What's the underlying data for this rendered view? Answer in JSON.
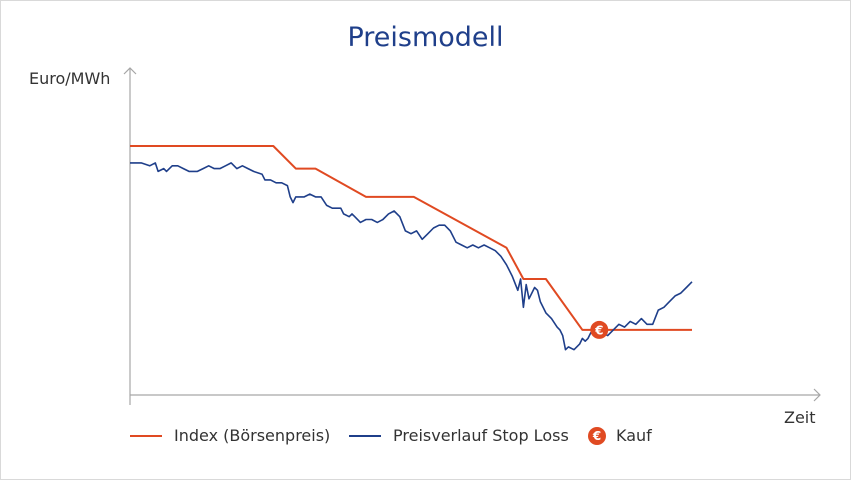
{
  "chart_data": {
    "type": "line",
    "title": "Preismodell",
    "ylabel": "Euro/MWh",
    "xlabel": "Zeit",
    "axis_ticks": false,
    "grid": false,
    "xlim": [
      0,
      100
    ],
    "ylim": [
      0,
      100
    ],
    "legend_position": "bottom",
    "series": [
      {
        "name": "Index (Börsenpreis)",
        "color": "#e04a22",
        "points": [
          [
            0,
            88
          ],
          [
            25.5,
            88
          ],
          [
            29.5,
            80
          ],
          [
            33,
            80
          ],
          [
            42,
            70
          ],
          [
            50.5,
            70
          ],
          [
            67,
            52
          ],
          [
            70,
            41
          ],
          [
            74,
            41
          ],
          [
            80.5,
            23
          ],
          [
            100,
            23
          ]
        ]
      },
      {
        "name": "Preisverlauf Stop Loss",
        "color": "#1f3f8a",
        "points": [
          [
            0,
            82
          ],
          [
            2,
            82
          ],
          [
            3.5,
            81
          ],
          [
            4.5,
            82
          ],
          [
            5,
            79
          ],
          [
            6,
            80
          ],
          [
            6.5,
            79
          ],
          [
            7.5,
            81
          ],
          [
            8.5,
            81
          ],
          [
            9.5,
            80
          ],
          [
            10.5,
            79
          ],
          [
            12,
            79
          ],
          [
            13,
            80
          ],
          [
            14,
            81
          ],
          [
            15,
            80
          ],
          [
            16,
            80
          ],
          [
            17,
            81
          ],
          [
            18,
            82
          ],
          [
            19,
            80
          ],
          [
            20,
            81
          ],
          [
            21,
            80
          ],
          [
            22,
            79
          ],
          [
            23.5,
            78
          ],
          [
            24,
            76
          ],
          [
            25,
            76
          ],
          [
            26,
            75
          ],
          [
            27,
            75
          ],
          [
            28,
            74
          ],
          [
            28.5,
            70
          ],
          [
            29,
            68
          ],
          [
            29.5,
            70
          ],
          [
            31,
            70
          ],
          [
            32,
            71
          ],
          [
            33,
            70
          ],
          [
            34,
            70
          ],
          [
            35,
            67
          ],
          [
            36,
            66
          ],
          [
            37.5,
            66
          ],
          [
            38,
            64
          ],
          [
            39,
            63
          ],
          [
            39.5,
            64
          ],
          [
            40,
            63
          ],
          [
            41,
            61
          ],
          [
            42,
            62
          ],
          [
            43,
            62
          ],
          [
            44,
            61
          ],
          [
            45,
            62
          ],
          [
            46,
            64
          ],
          [
            47,
            65
          ],
          [
            48,
            63
          ],
          [
            49,
            58
          ],
          [
            50,
            57
          ],
          [
            51,
            58
          ],
          [
            52,
            55
          ],
          [
            53,
            57
          ],
          [
            54,
            59
          ],
          [
            55,
            60
          ],
          [
            56,
            60
          ],
          [
            57,
            58
          ],
          [
            58,
            54
          ],
          [
            59,
            53
          ],
          [
            60,
            52
          ],
          [
            61,
            53
          ],
          [
            62,
            52
          ],
          [
            63,
            53
          ],
          [
            64,
            52
          ],
          [
            65,
            51
          ],
          [
            66,
            49
          ],
          [
            67,
            46
          ],
          [
            68,
            42
          ],
          [
            69,
            37
          ],
          [
            69.5,
            41
          ],
          [
            70,
            31
          ],
          [
            70.5,
            39
          ],
          [
            71,
            34
          ],
          [
            72,
            38
          ],
          [
            72.5,
            37
          ],
          [
            73,
            33
          ],
          [
            74,
            29
          ],
          [
            75,
            27
          ],
          [
            76,
            24
          ],
          [
            76.5,
            23
          ],
          [
            77,
            21
          ],
          [
            77.5,
            16
          ],
          [
            78,
            17
          ],
          [
            79,
            16
          ],
          [
            80,
            18
          ],
          [
            80.5,
            20
          ],
          [
            81,
            19
          ],
          [
            81.5,
            20
          ],
          [
            82,
            22
          ],
          [
            83,
            21
          ],
          [
            84,
            22
          ],
          [
            85,
            21
          ],
          [
            86,
            23
          ],
          [
            87,
            25
          ],
          [
            88,
            24
          ],
          [
            89,
            26
          ],
          [
            90,
            25
          ],
          [
            91,
            27
          ],
          [
            92,
            25
          ],
          [
            93,
            25
          ],
          [
            94,
            30
          ],
          [
            95,
            31
          ],
          [
            96,
            33
          ],
          [
            97,
            35
          ],
          [
            98,
            36
          ],
          [
            99,
            38
          ],
          [
            100,
            40
          ]
        ]
      }
    ],
    "annotations": [
      {
        "type": "marker",
        "name": "Kauf",
        "symbol": "€",
        "x": 83.5,
        "y": 23,
        "color": "#e04a22"
      }
    ]
  },
  "legend": {
    "items": [
      {
        "label": "Index (Börsenpreis)",
        "kind": "line",
        "color": "#e04a22"
      },
      {
        "label": "Preisverlauf Stop Loss",
        "kind": "line",
        "color": "#1f3f8a"
      },
      {
        "label": "Kauf",
        "kind": "marker",
        "symbol": "€",
        "color": "#e04a22"
      }
    ]
  },
  "colors": {
    "axis": "#a6a6a6",
    "frame": "#d9d9d9",
    "title": "#1f3f8a",
    "text": "#333333"
  }
}
